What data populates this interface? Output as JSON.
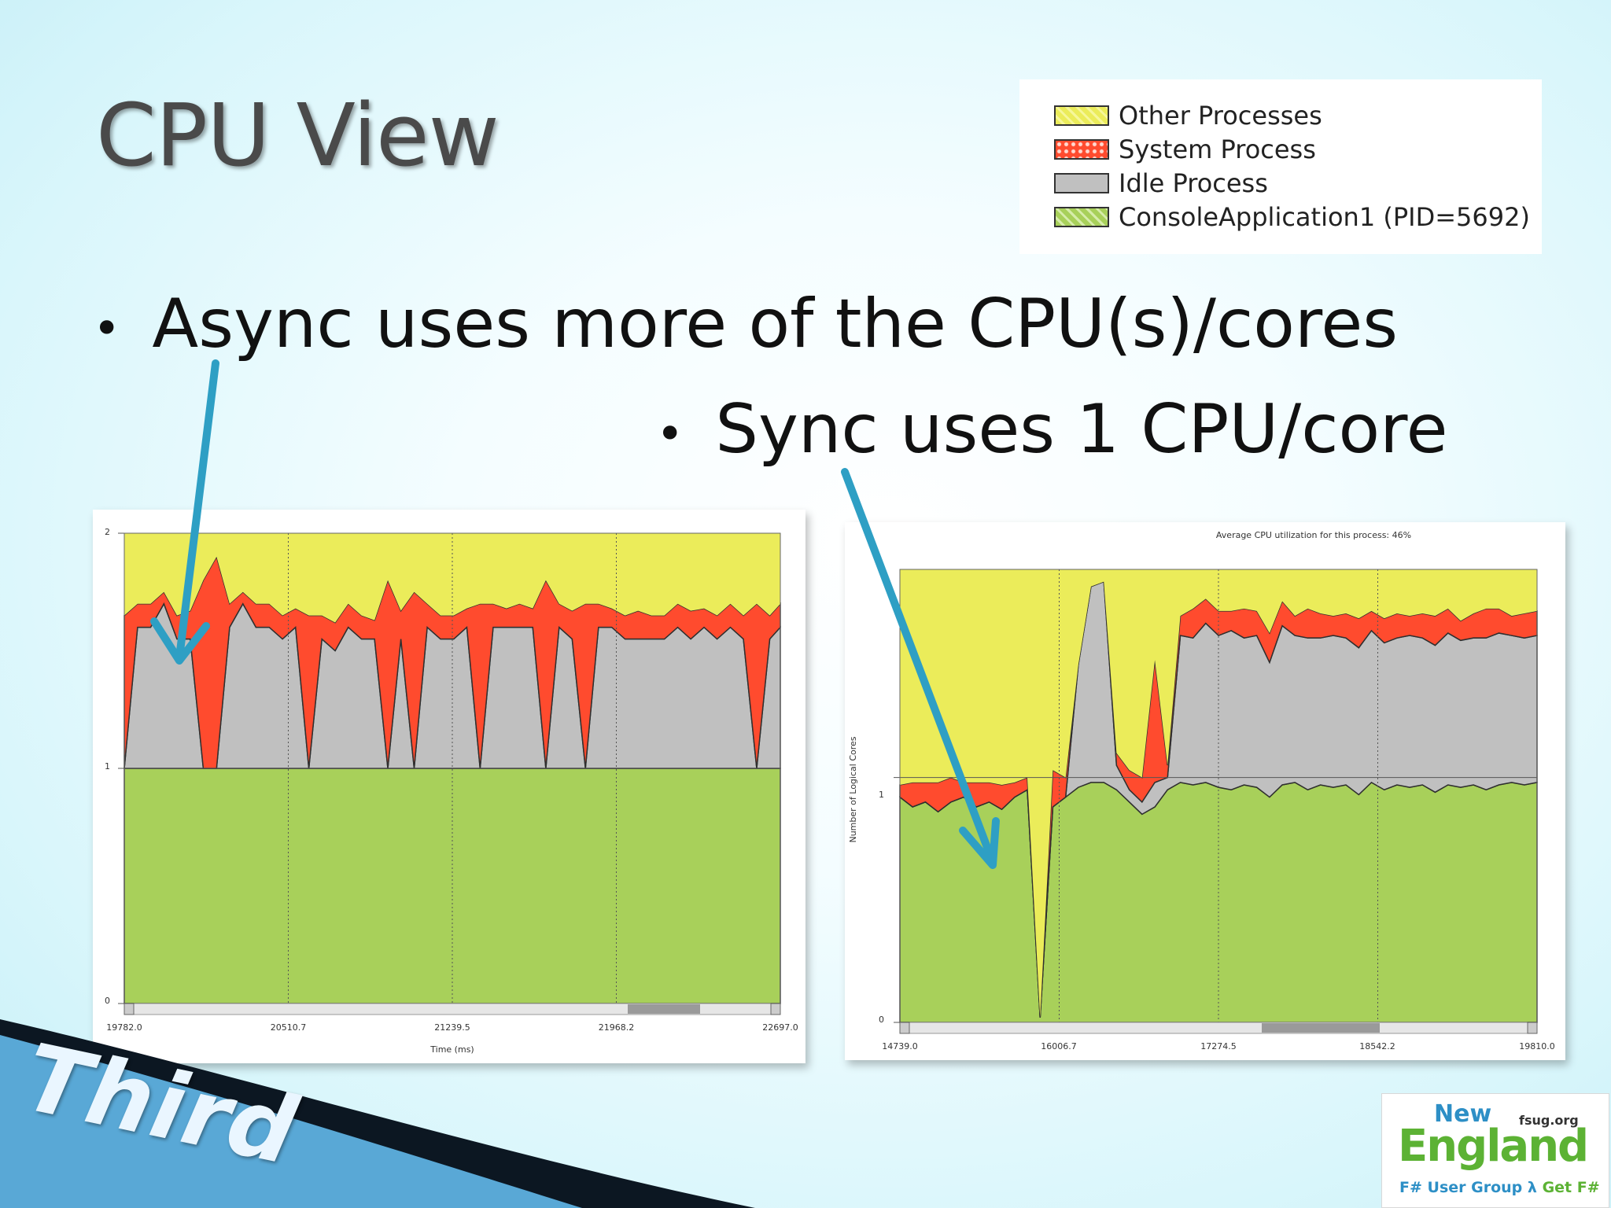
{
  "slide": {
    "title": "CPU View",
    "bullets": [
      {
        "text": "Async uses more of the CPU(s)/cores"
      },
      {
        "text": "Sync uses 1 CPU/core"
      }
    ]
  },
  "legend": [
    {
      "label": "Other Processes",
      "color": "#ebec5a"
    },
    {
      "label": "System Process",
      "color": "#ff4b2e"
    },
    {
      "label": "Idle Process",
      "color": "#c0c0c0"
    },
    {
      "label": "ConsoleApplication1 (PID=5692)",
      "color": "#a8d05a"
    }
  ],
  "colors": {
    "other": "#ebec5a",
    "system": "#ff4b2e",
    "idle": "#c0c0c0",
    "console": "#a8d05a",
    "arrow": "#2e9fc4"
  },
  "logos": {
    "left": {
      "text": "Third"
    },
    "right": {
      "line1": "New",
      "site": "fsug.org",
      "line2": "England",
      "line3_a": "F#",
      "line3_b": "User Group",
      "line3_c": "Get F#"
    }
  },
  "chart_data": [
    {
      "type": "area",
      "title": "",
      "xlabel": "Time (ms)",
      "ylabel": "",
      "xlim": [
        19782.0,
        22697.0
      ],
      "ylim": [
        0,
        2
      ],
      "xticks": [
        "19782.0",
        "20510.7",
        "21239.5",
        "21968.2",
        "22697.0"
      ],
      "yticks": [
        "0",
        "1",
        "2"
      ],
      "grid": true,
      "x": [
        19782,
        19841,
        19899,
        19958,
        20016,
        20075,
        20133,
        20192,
        20250,
        20309,
        20367,
        20426,
        20485,
        20543,
        20602,
        20660,
        20719,
        20777,
        20836,
        20894,
        20953,
        21011,
        21070,
        21128,
        21187,
        21246,
        21304,
        21363,
        21421,
        21480,
        21538,
        21597,
        21655,
        21714,
        21772,
        21831,
        21889,
        21948,
        22007,
        22065,
        22124,
        22182,
        22241,
        22299,
        22358,
        22416,
        22475,
        22533,
        22592,
        22650,
        22697
      ],
      "series": [
        {
          "name": "ConsoleApplication1 (PID=5692)",
          "values": [
            1,
            1,
            1,
            1,
            1,
            1,
            1,
            1,
            1,
            1,
            1,
            1,
            1,
            1,
            1,
            1,
            1,
            1,
            1,
            1,
            1,
            1,
            1,
            1,
            1,
            1,
            1,
            1,
            1,
            1,
            1,
            1,
            1,
            1,
            1,
            1,
            1,
            1,
            1,
            1,
            1,
            1,
            1,
            1,
            1,
            1,
            1,
            1,
            1,
            1,
            1
          ]
        },
        {
          "name": "Idle Process",
          "values": [
            0,
            0.6,
            0.6,
            0.7,
            0.55,
            0.55,
            0.0,
            0.0,
            0.6,
            0.7,
            0.6,
            0.6,
            0.55,
            0.6,
            0.0,
            0.55,
            0.5,
            0.6,
            0.55,
            0.55,
            0.0,
            0.55,
            0.0,
            0.6,
            0.55,
            0.55,
            0.6,
            0.0,
            0.6,
            0.6,
            0.6,
            0.6,
            0.0,
            0.6,
            0.55,
            0.0,
            0.6,
            0.6,
            0.55,
            0.55,
            0.55,
            0.55,
            0.6,
            0.55,
            0.6,
            0.55,
            0.6,
            0.55,
            0.0,
            0.55,
            0.6
          ]
        },
        {
          "name": "System Process",
          "values": [
            0.65,
            0.1,
            0.1,
            0.05,
            0.1,
            0.12,
            0.8,
            0.9,
            0.1,
            0.05,
            0.1,
            0.1,
            0.1,
            0.08,
            0.65,
            0.1,
            0.12,
            0.1,
            0.1,
            0.08,
            0.8,
            0.12,
            0.75,
            0.1,
            0.1,
            0.1,
            0.08,
            0.7,
            0.1,
            0.08,
            0.1,
            0.08,
            0.8,
            0.1,
            0.12,
            0.7,
            0.1,
            0.08,
            0.1,
            0.12,
            0.1,
            0.1,
            0.1,
            0.12,
            0.08,
            0.1,
            0.1,
            0.1,
            0.7,
            0.1,
            0.1
          ]
        },
        {
          "name": "Other Processes",
          "values": [
            0.35,
            0.3,
            0.3,
            0.25,
            0.35,
            0.33,
            0.2,
            0.1,
            0.3,
            0.25,
            0.3,
            0.3,
            0.35,
            0.32,
            0.35,
            0.35,
            0.38,
            0.3,
            0.35,
            0.37,
            0.2,
            0.33,
            0.25,
            0.3,
            0.35,
            0.35,
            0.32,
            0.3,
            0.3,
            0.32,
            0.3,
            0.32,
            0.2,
            0.3,
            0.33,
            0.3,
            0.3,
            0.32,
            0.35,
            0.33,
            0.35,
            0.35,
            0.3,
            0.33,
            0.32,
            0.35,
            0.3,
            0.35,
            0.3,
            0.35,
            0.3
          ]
        }
      ]
    },
    {
      "type": "area",
      "title": "Average CPU utilization for this process: 46%",
      "xlabel": "",
      "ylabel": "Number of Logical Cores",
      "xlim": [
        14739.0,
        19810.0
      ],
      "ylim": [
        0,
        1.85
      ],
      "xticks": [
        "14739.0",
        "16006.7",
        "17274.5",
        "18542.2",
        "19810.0"
      ],
      "yticks": [
        "0",
        "1"
      ],
      "grid": true,
      "x": [
        14739,
        14840,
        14942,
        15043,
        15145,
        15246,
        15348,
        15449,
        15550,
        15652,
        15753,
        15855,
        15956,
        16058,
        16159,
        16260,
        16362,
        16463,
        16565,
        16666,
        16768,
        16869,
        16971,
        17072,
        17173,
        17275,
        17376,
        17478,
        17579,
        17681,
        17782,
        17883,
        17985,
        18086,
        18188,
        18289,
        18391,
        18492,
        18594,
        18695,
        18796,
        18898,
        18999,
        19101,
        19202,
        19304,
        19405,
        19506,
        19608,
        19709,
        19810
      ],
      "series": [
        {
          "name": "ConsoleApplication1 (PID=5692)",
          "values": [
            0.92,
            0.88,
            0.9,
            0.86,
            0.9,
            0.92,
            0.88,
            0.9,
            0.87,
            0.92,
            0.95,
            0.02,
            0.88,
            0.92,
            0.96,
            0.98,
            0.98,
            0.95,
            0.9,
            0.85,
            0.88,
            0.95,
            0.98,
            0.97,
            0.98,
            0.96,
            0.95,
            0.97,
            0.96,
            0.92,
            0.97,
            0.98,
            0.95,
            0.97,
            0.96,
            0.97,
            0.93,
            0.98,
            0.95,
            0.97,
            0.96,
            0.97,
            0.94,
            0.97,
            0.96,
            0.97,
            0.95,
            0.97,
            0.98,
            0.97,
            0.98
          ]
        },
        {
          "name": "Idle Process",
          "values": [
            0,
            0,
            0,
            0,
            0,
            0,
            0,
            0,
            0,
            0,
            0,
            0,
            0,
            0,
            0.5,
            0.8,
            0.82,
            0.1,
            0.05,
            0.05,
            0.1,
            0.05,
            0.6,
            0.6,
            0.65,
            0.62,
            0.65,
            0.6,
            0.62,
            0.55,
            0.65,
            0.6,
            0.62,
            0.6,
            0.62,
            0.6,
            0.6,
            0.62,
            0.6,
            0.6,
            0.62,
            0.6,
            0.6,
            0.62,
            0.6,
            0.6,
            0.62,
            0.62,
            0.6,
            0.6,
            0.6
          ]
        },
        {
          "name": "System Process",
          "values": [
            0.05,
            0.1,
            0.08,
            0.12,
            0.1,
            0.06,
            0.1,
            0.08,
            0.1,
            0.06,
            0.05,
            0.0,
            0.15,
            0.08,
            0.0,
            0.0,
            0.0,
            0.05,
            0.08,
            0.1,
            0.5,
            0.05,
            0.08,
            0.12,
            0.1,
            0.1,
            0.08,
            0.12,
            0.1,
            0.12,
            0.1,
            0.08,
            0.12,
            0.1,
            0.08,
            0.1,
            0.12,
            0.08,
            0.1,
            0.1,
            0.08,
            0.1,
            0.12,
            0.1,
            0.08,
            0.1,
            0.12,
            0.1,
            0.08,
            0.1,
            0.1
          ]
        },
        {
          "name": "Other Processes",
          "values": [
            0.88,
            0.87,
            0.87,
            0.87,
            0.85,
            0.87,
            0.87,
            0.87,
            0.88,
            0.87,
            0.85,
            1.83,
            0.82,
            0.85,
            0.39,
            0.07,
            0.05,
            0.75,
            0.82,
            0.85,
            0.32,
            0.8,
            0.19,
            0.16,
            0.12,
            0.17,
            0.17,
            0.16,
            0.17,
            0.26,
            0.13,
            0.19,
            0.16,
            0.18,
            0.19,
            0.18,
            0.2,
            0.17,
            0.2,
            0.18,
            0.19,
            0.18,
            0.19,
            0.16,
            0.21,
            0.18,
            0.16,
            0.16,
            0.19,
            0.18,
            0.17
          ]
        }
      ]
    }
  ]
}
